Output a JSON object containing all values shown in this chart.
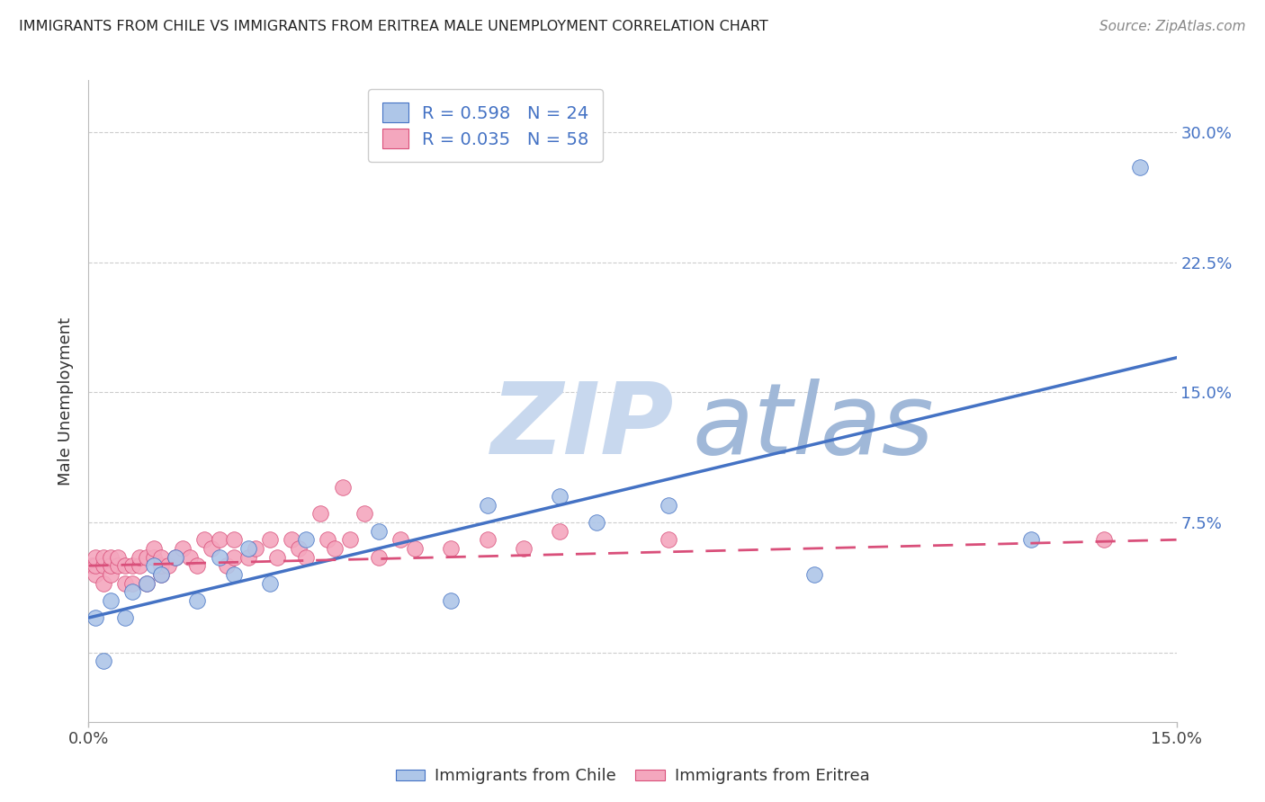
{
  "title": "IMMIGRANTS FROM CHILE VS IMMIGRANTS FROM ERITREA MALE UNEMPLOYMENT CORRELATION CHART",
  "source": "Source: ZipAtlas.com",
  "ylabel": "Male Unemployment",
  "xlim": [
    0.0,
    0.15
  ],
  "ylim": [
    -0.04,
    0.33
  ],
  "xticks": [
    0.0,
    0.15
  ],
  "xtick_labels": [
    "0.0%",
    "15.0%"
  ],
  "yticks": [
    0.0,
    0.075,
    0.15,
    0.225,
    0.3
  ],
  "ytick_labels": [
    "",
    "7.5%",
    "15.0%",
    "22.5%",
    "30.0%"
  ],
  "chile_R": 0.598,
  "chile_N": 24,
  "eritrea_R": 0.035,
  "eritrea_N": 58,
  "chile_color": "#aec6e8",
  "eritrea_color": "#f4a7be",
  "chile_line_color": "#4472c4",
  "eritrea_line_color": "#d94f7a",
  "watermark_zip": "ZIP",
  "watermark_atlas": "atlas",
  "watermark_color_zip": "#c8d8ee",
  "watermark_color_atlas": "#a0b8d8",
  "chile_x": [
    0.001,
    0.002,
    0.003,
    0.005,
    0.006,
    0.008,
    0.009,
    0.01,
    0.012,
    0.015,
    0.018,
    0.02,
    0.022,
    0.025,
    0.03,
    0.04,
    0.05,
    0.055,
    0.065,
    0.07,
    0.08,
    0.1,
    0.13,
    0.145
  ],
  "chile_y": [
    0.02,
    -0.005,
    0.03,
    0.02,
    0.035,
    0.04,
    0.05,
    0.045,
    0.055,
    0.03,
    0.055,
    0.045,
    0.06,
    0.04,
    0.065,
    0.07,
    0.03,
    0.085,
    0.09,
    0.075,
    0.085,
    0.045,
    0.065,
    0.28
  ],
  "eritrea_x": [
    0.0005,
    0.001,
    0.001,
    0.001,
    0.002,
    0.002,
    0.002,
    0.003,
    0.003,
    0.003,
    0.004,
    0.004,
    0.005,
    0.005,
    0.006,
    0.006,
    0.007,
    0.007,
    0.008,
    0.008,
    0.009,
    0.009,
    0.01,
    0.01,
    0.01,
    0.011,
    0.012,
    0.013,
    0.014,
    0.015,
    0.016,
    0.017,
    0.018,
    0.019,
    0.02,
    0.02,
    0.022,
    0.023,
    0.025,
    0.026,
    0.028,
    0.029,
    0.03,
    0.032,
    0.033,
    0.034,
    0.035,
    0.036,
    0.038,
    0.04,
    0.043,
    0.045,
    0.05,
    0.055,
    0.06,
    0.065,
    0.08,
    0.14
  ],
  "eritrea_y": [
    0.05,
    0.045,
    0.05,
    0.055,
    0.04,
    0.05,
    0.055,
    0.045,
    0.05,
    0.055,
    0.05,
    0.055,
    0.04,
    0.05,
    0.04,
    0.05,
    0.05,
    0.055,
    0.04,
    0.055,
    0.055,
    0.06,
    0.045,
    0.05,
    0.055,
    0.05,
    0.055,
    0.06,
    0.055,
    0.05,
    0.065,
    0.06,
    0.065,
    0.05,
    0.055,
    0.065,
    0.055,
    0.06,
    0.065,
    0.055,
    0.065,
    0.06,
    0.055,
    0.08,
    0.065,
    0.06,
    0.095,
    0.065,
    0.08,
    0.055,
    0.065,
    0.06,
    0.06,
    0.065,
    0.06,
    0.07,
    0.065,
    0.065
  ],
  "chile_trendline_x": [
    0.0,
    0.15
  ],
  "chile_trendline_y": [
    0.02,
    0.17
  ],
  "eritrea_trendline_x": [
    0.0,
    0.15
  ],
  "eritrea_trendline_y": [
    0.05,
    0.065
  ]
}
